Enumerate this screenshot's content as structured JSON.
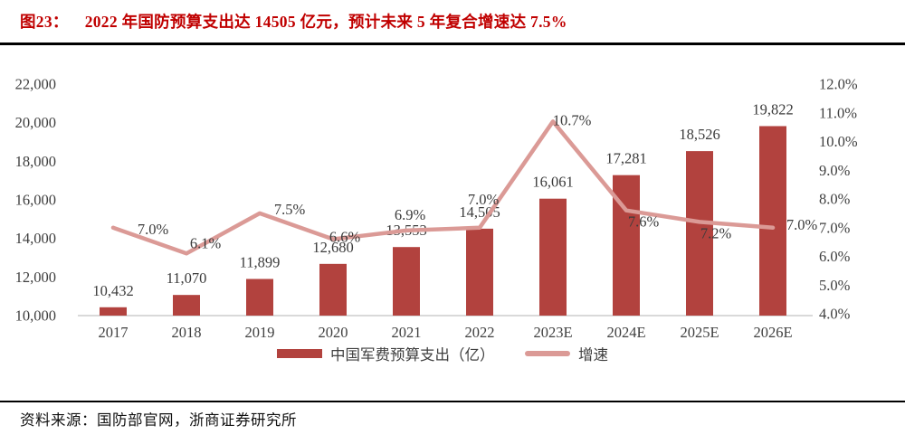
{
  "figure": {
    "label": "图23：",
    "title": "2022 年国防预算支出达 14505 亿元，预计未来 5 年复合增速达 7.5%"
  },
  "source": "资料来源：国防部官网，浙商证券研究所",
  "colors": {
    "title_red": "#C00000",
    "bar": "#B2423E",
    "line": "#DB9A96",
    "axis_text": "#404040",
    "data_label_text": "#3B3B3B",
    "baseline_gray": "#D9D9D9",
    "rule_black": "#000000"
  },
  "chart_data": {
    "type": "bar+line",
    "categories": [
      "2017",
      "2018",
      "2019",
      "2020",
      "2021",
      "2022",
      "2023E",
      "2024E",
      "2025E",
      "2026E"
    ],
    "series": [
      {
        "name": "中国军费预算支出（亿）",
        "type": "bar",
        "axis": "left",
        "values": [
          10432,
          11070,
          11899,
          12680,
          13553,
          14505,
          16061,
          17281,
          18526,
          19822
        ],
        "labels": [
          "10,432",
          "11,070",
          "11,899",
          "12,680",
          "13,553",
          "14,505",
          "16,061",
          "17,281",
          "18,526",
          "19,822"
        ]
      },
      {
        "name": "增速",
        "type": "line",
        "axis": "right",
        "values": [
          7.0,
          6.1,
          7.5,
          6.6,
          6.9,
          7.0,
          10.7,
          7.6,
          7.2,
          7.0
        ],
        "labels": [
          "7.0%",
          "6.1%",
          "7.5%",
          "6.6%",
          "6.9%",
          "7.0%",
          "10.7%",
          "7.6%",
          "7.2%",
          "7.0%"
        ]
      }
    ],
    "left_axis": {
      "min": 10000,
      "max": 22000,
      "step": 2000,
      "tick_labels": [
        "10,000",
        "12,000",
        "14,000",
        "16,000",
        "18,000",
        "20,000",
        "22,000"
      ]
    },
    "right_axis": {
      "min": 4.0,
      "max": 12.0,
      "step": 1.0,
      "tick_labels": [
        "4.0%",
        "5.0%",
        "6.0%",
        "7.0%",
        "8.0%",
        "9.0%",
        "10.0%",
        "11.0%",
        "12.0%"
      ]
    },
    "grid": false,
    "legend_position": "bottom"
  }
}
